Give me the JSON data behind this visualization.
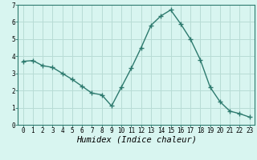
{
  "x": [
    0,
    1,
    2,
    3,
    4,
    5,
    6,
    7,
    8,
    9,
    10,
    11,
    12,
    13,
    14,
    15,
    16,
    17,
    18,
    19,
    20,
    21,
    22,
    23
  ],
  "y": [
    3.7,
    3.75,
    3.45,
    3.35,
    3.0,
    2.65,
    2.25,
    1.85,
    1.75,
    1.1,
    2.2,
    3.3,
    4.5,
    5.8,
    6.35,
    6.7,
    5.9,
    5.0,
    3.8,
    2.2,
    1.35,
    0.8,
    0.65,
    0.45
  ],
  "line_color": "#2d7a6e",
  "marker": "+",
  "marker_size": 4,
  "marker_lw": 1.0,
  "bg_color": "#d8f5f0",
  "grid_color": "#b8dcd5",
  "xlabel": "Humidex (Indice chaleur)",
  "xlabel_style": "italic",
  "xlim": [
    -0.5,
    23.5
  ],
  "ylim": [
    0,
    7
  ],
  "yticks": [
    0,
    1,
    2,
    3,
    4,
    5,
    6,
    7
  ],
  "xticks": [
    0,
    1,
    2,
    3,
    4,
    5,
    6,
    7,
    8,
    9,
    10,
    11,
    12,
    13,
    14,
    15,
    16,
    17,
    18,
    19,
    20,
    21,
    22,
    23
  ],
  "tick_fontsize": 5.5,
  "xlabel_fontsize": 7.5,
  "line_width": 1.0,
  "spine_color": "#2d7a6e"
}
